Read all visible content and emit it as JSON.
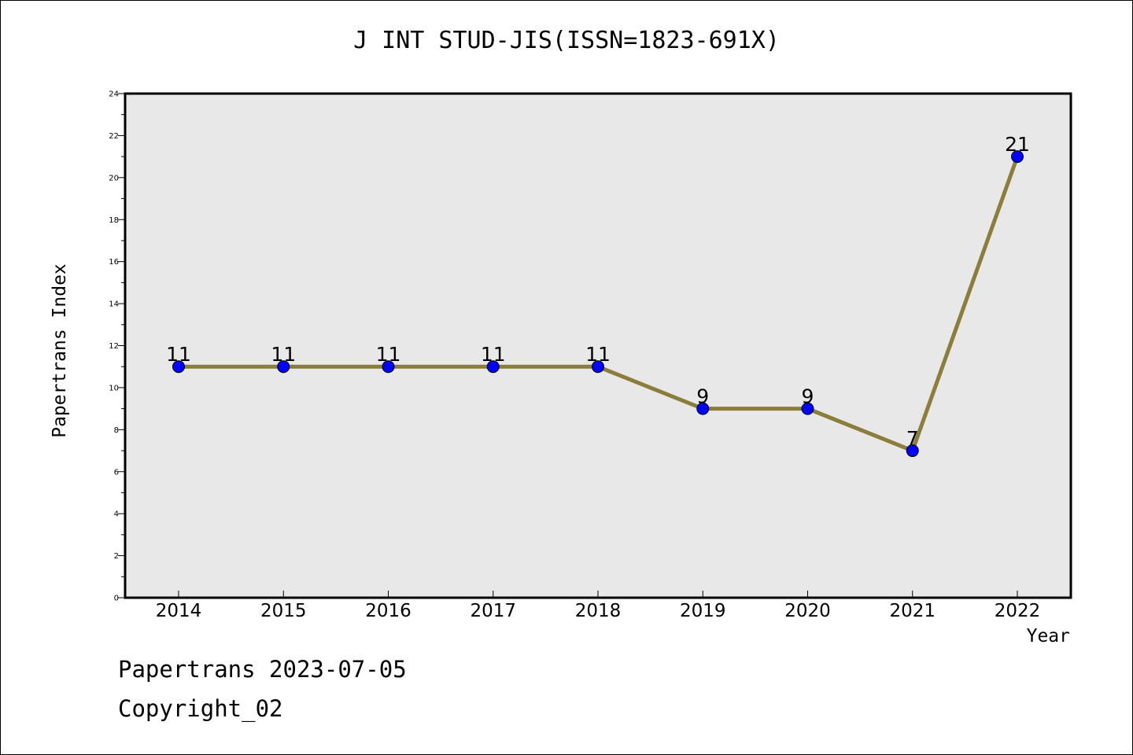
{
  "header": {
    "title": "J INT STUD-JIS(ISSN=1823-691X)"
  },
  "footer": {
    "line1": "Papertrans 2023-07-05",
    "line2": "Copyright_02"
  },
  "chart_data": {
    "type": "line",
    "title": "J INT STUD-JIS(ISSN=1823-691X)",
    "xlabel": "Year",
    "ylabel": "Papertrans Index",
    "categories": [
      "2014",
      "2015",
      "2016",
      "2017",
      "2018",
      "2019",
      "2020",
      "2021",
      "2022"
    ],
    "series": [
      {
        "values": [
          11,
          11,
          11,
          11,
          11,
          9,
          9,
          7,
          21
        ]
      }
    ],
    "ylim": [
      0,
      24
    ],
    "yticks": [
      0,
      2,
      4,
      6,
      8,
      10,
      12,
      14,
      16,
      18,
      20,
      22,
      24
    ],
    "grid": false,
    "colors": {
      "line": "#8b7d3a",
      "marker": "#0000ff",
      "plot_bg": "#e8e8e8"
    }
  }
}
